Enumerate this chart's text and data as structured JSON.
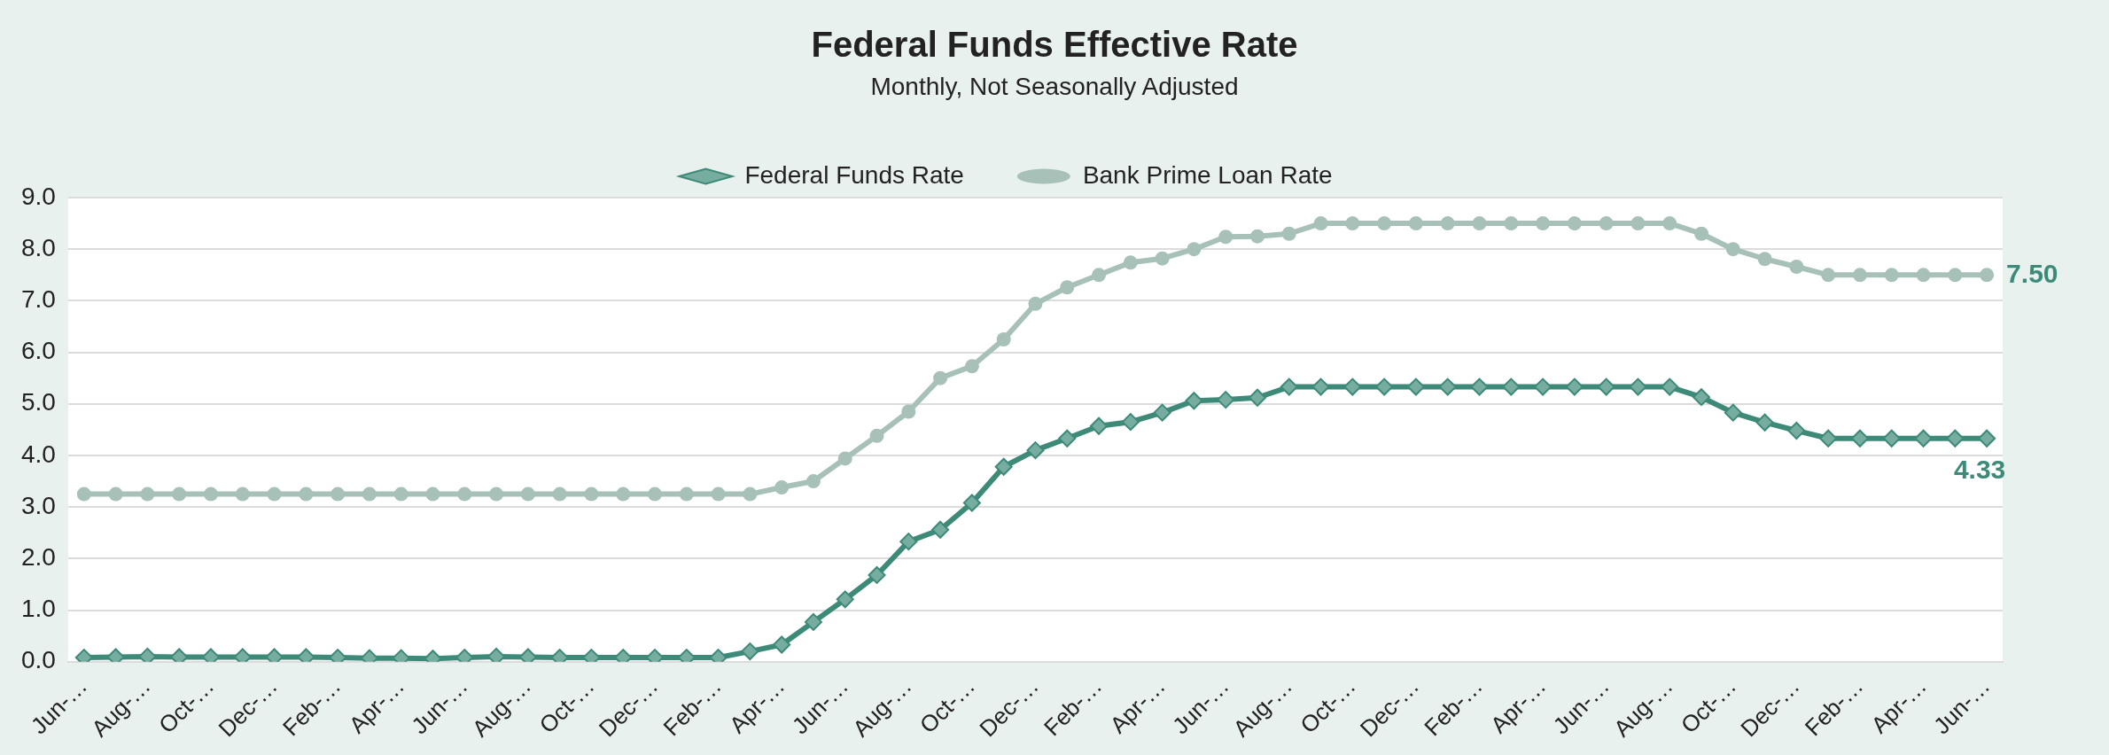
{
  "chart_data": {
    "type": "line",
    "title": "Federal Funds Effective Rate",
    "subtitle": "Monthly, Not Seasonally Adjusted",
    "categories": [
      "Jun-…",
      null,
      "Aug-…",
      null,
      "Oct-…",
      null,
      "Dec-…",
      null,
      "Feb-…",
      null,
      "Apr-…",
      null,
      "Jun-…",
      null,
      "Aug-…",
      null,
      "Oct-…",
      null,
      "Dec-…",
      null,
      "Feb-…",
      null,
      "Apr-…",
      null,
      "Jun-…",
      null,
      "Aug-…",
      null,
      "Oct-…",
      null,
      "Dec-…",
      null,
      "Feb-…",
      null,
      "Apr-…",
      null,
      "Jun-…",
      null,
      "Aug-…",
      null,
      "Oct-…",
      null,
      "Dec-…",
      null,
      "Feb-…",
      null,
      "Apr-…",
      null,
      "Jun-…",
      null,
      "Aug-…",
      null,
      "Oct-…",
      null,
      "Dec-…",
      null,
      "Feb-…",
      null,
      "Apr-…",
      null,
      "Jun-…"
    ],
    "series": [
      {
        "name": "Federal Funds Rate",
        "color": "#3d8a78",
        "marker": "diamond",
        "values": [
          0.08,
          0.09,
          0.1,
          0.09,
          0.09,
          0.09,
          0.09,
          0.09,
          0.08,
          0.07,
          0.07,
          0.06,
          0.08,
          0.1,
          0.09,
          0.08,
          0.08,
          0.08,
          0.08,
          0.08,
          0.08,
          0.2,
          0.33,
          0.77,
          1.21,
          1.68,
          2.33,
          2.56,
          3.08,
          3.78,
          4.1,
          4.33,
          4.57,
          4.65,
          4.83,
          5.06,
          5.08,
          5.12,
          5.33,
          5.33,
          5.33,
          5.33,
          5.33,
          5.33,
          5.33,
          5.33,
          5.33,
          5.33,
          5.33,
          5.33,
          5.33,
          5.13,
          4.83,
          4.64,
          4.48,
          4.33,
          4.33,
          4.33,
          4.33,
          4.33,
          4.33
        ],
        "value_labels": [
          null,
          null,
          null,
          null,
          null,
          null,
          null,
          null,
          null,
          null,
          null,
          null,
          null,
          null,
          null,
          null,
          null,
          null,
          null,
          null,
          null,
          null,
          null,
          null,
          null,
          null,
          null,
          null,
          null,
          null,
          null,
          null,
          null,
          null,
          null,
          null,
          null,
          null,
          null,
          null,
          null,
          null,
          null,
          null,
          null,
          null,
          null,
          null,
          null,
          null,
          null,
          null,
          null,
          null,
          null,
          null,
          null,
          null,
          null,
          null,
          "4.33"
        ]
      },
      {
        "name": "Bank Prime Loan Rate",
        "color": "#a8c1b8",
        "marker": "circle",
        "values": [
          3.25,
          3.25,
          3.25,
          3.25,
          3.25,
          3.25,
          3.25,
          3.25,
          3.25,
          3.25,
          3.25,
          3.25,
          3.25,
          3.25,
          3.25,
          3.25,
          3.25,
          3.25,
          3.25,
          3.25,
          3.25,
          3.25,
          3.38,
          3.5,
          3.94,
          4.38,
          4.85,
          5.5,
          5.73,
          6.25,
          6.94,
          7.26,
          7.5,
          7.74,
          7.82,
          8.0,
          8.24,
          8.25,
          8.3,
          8.5,
          8.5,
          8.5,
          8.5,
          8.5,
          8.5,
          8.5,
          8.5,
          8.5,
          8.5,
          8.5,
          8.5,
          8.3,
          8.0,
          7.81,
          7.66,
          7.5,
          7.5,
          7.5,
          7.5,
          7.5,
          7.5
        ],
        "value_labels": [
          null,
          null,
          null,
          null,
          null,
          null,
          null,
          null,
          null,
          null,
          null,
          null,
          null,
          null,
          null,
          null,
          null,
          null,
          null,
          null,
          null,
          null,
          null,
          null,
          null,
          null,
          null,
          null,
          null,
          null,
          null,
          null,
          null,
          null,
          null,
          null,
          null,
          null,
          null,
          null,
          null,
          null,
          null,
          null,
          null,
          null,
          null,
          null,
          null,
          null,
          null,
          null,
          null,
          null,
          null,
          null,
          null,
          null,
          null,
          null,
          "7.50"
        ]
      }
    ],
    "ylim": [
      0,
      9
    ],
    "yticks": [
      {
        "value": 0,
        "label": "0.0"
      },
      {
        "value": 1,
        "label": "1.0"
      },
      {
        "value": 2,
        "label": "2.0"
      },
      {
        "value": 3,
        "label": "3.0"
      },
      {
        "value": 4,
        "label": "4.0"
      },
      {
        "value": 5,
        "label": "5.0"
      },
      {
        "value": 6,
        "label": "6.0"
      },
      {
        "value": 7,
        "label": "7.0"
      },
      {
        "value": 8,
        "label": "8.0"
      },
      {
        "value": 9,
        "label": "9.0"
      }
    ],
    "grid": "y",
    "legend": "top",
    "line_style": "solid"
  }
}
